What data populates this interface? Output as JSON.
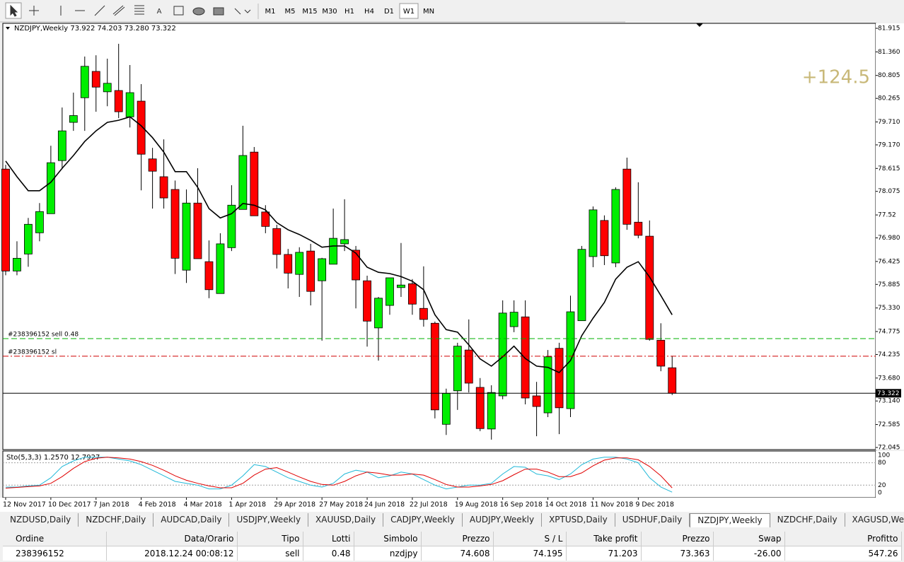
{
  "toolbar": {
    "timeframes": [
      {
        "label": "M1",
        "selected": false
      },
      {
        "label": "M5",
        "selected": false
      },
      {
        "label": "M15",
        "selected": false
      },
      {
        "label": "M30",
        "selected": false
      },
      {
        "label": "H1",
        "selected": false
      },
      {
        "label": "H4",
        "selected": false
      },
      {
        "label": "D1",
        "selected": false
      },
      {
        "label": "W1",
        "selected": true
      },
      {
        "label": "MN",
        "selected": false
      }
    ]
  },
  "chart_data": {
    "type": "candlestick",
    "info_label": "NZDJPY,Weekly  73.922 74.203 73.280 73.322",
    "overlay_text": "+124.5",
    "categories": [
      "12 Nov 2017",
      null,
      null,
      null,
      "10 Dec 2017",
      null,
      null,
      null,
      "7 Jan 2018",
      null,
      null,
      null,
      "4 Feb 2018",
      null,
      null,
      null,
      "4 Mar 2018",
      null,
      null,
      null,
      "1 Apr 2018",
      null,
      null,
      null,
      "29 Apr 2018",
      null,
      null,
      null,
      "27 May 2018",
      null,
      null,
      null,
      "24 Jun 2018",
      null,
      null,
      null,
      "22 Jul 2018",
      null,
      null,
      null,
      "19 Aug 2018",
      null,
      null,
      null,
      "16 Sep 2018",
      null,
      null,
      null,
      "14 Oct 2018",
      null,
      null,
      null,
      "11 Nov 2018",
      null,
      null,
      null,
      "9 Dec 2018",
      null,
      null,
      null
    ],
    "open": [
      78.6,
      76.2,
      76.6,
      77.1,
      77.55,
      78.8,
      79.7,
      80.28,
      80.9,
      80.42,
      80.45,
      79.83,
      80.2,
      78.84,
      78.42,
      78.12,
      76.22,
      77.8,
      76.42,
      75.67,
      76.75,
      77.65,
      79.0,
      77.59,
      77.2,
      76.59,
      76.12,
      76.67,
      75.97,
      76.36,
      76.84,
      76.69,
      75.97,
      74.86,
      75.39,
      75.81,
      75.9,
      75.32,
      74.97,
      72.59,
      73.38,
      74.34,
      73.46,
      72.48,
      73.26,
      74.89,
      75.12,
      73.26,
      72.86,
      74.38,
      72.96,
      75.03,
      76.54,
      77.39,
      76.39,
      78.6,
      77.35,
      77.02,
      74.57,
      73.922
    ],
    "high": [
      78.7,
      76.9,
      77.45,
      77.8,
      79.15,
      80.05,
      80.4,
      81.25,
      81.28,
      81.2,
      81.55,
      81.05,
      80.6,
      79.1,
      79.3,
      78.33,
      78.12,
      78.62,
      76.92,
      77.09,
      78.22,
      79.62,
      79.12,
      77.75,
      77.29,
      76.72,
      76.76,
      76.84,
      76.51,
      77.67,
      77.89,
      76.79,
      76.09,
      75.59,
      76.04,
      76.86,
      76.01,
      76.31,
      75.01,
      73.43,
      74.51,
      75.06,
      73.68,
      73.51,
      75.51,
      75.51,
      75.51,
      73.59,
      74.34,
      74.51,
      75.62,
      76.79,
      77.72,
      77.51,
      78.17,
      78.87,
      78.29,
      77.39,
      74.97,
      74.203
    ],
    "low": [
      76.1,
      76.1,
      76.3,
      76.9,
      77.55,
      78.6,
      79.5,
      79.5,
      79.95,
      80.08,
      79.8,
      79.58,
      78.1,
      77.67,
      77.67,
      76.13,
      75.92,
      76.49,
      75.56,
      75.67,
      76.67,
      77.65,
      77.5,
      77.09,
      76.26,
      75.79,
      75.59,
      75.39,
      74.56,
      76.36,
      76.67,
      75.32,
      74.42,
      74.09,
      75.17,
      75.59,
      75.17,
      74.89,
      72.73,
      72.34,
      72.93,
      73.34,
      72.43,
      72.23,
      73.18,
      74.76,
      73.06,
      72.31,
      72.76,
      72.36,
      72.76,
      75.03,
      76.29,
      76.34,
      76.29,
      77.17,
      76.97,
      74.56,
      73.84,
      73.28
    ],
    "close": [
      76.2,
      76.5,
      77.3,
      77.6,
      78.75,
      79.5,
      79.86,
      81.02,
      80.53,
      80.62,
      79.95,
      80.4,
      78.95,
      78.55,
      77.92,
      76.5,
      77.8,
      76.49,
      75.76,
      76.84,
      77.75,
      78.92,
      77.5,
      77.25,
      76.59,
      76.15,
      76.64,
      75.72,
      76.49,
      76.97,
      76.94,
      75.99,
      75.02,
      75.56,
      76.04,
      75.87,
      75.42,
      75.06,
      72.93,
      73.32,
      74.43,
      73.56,
      72.49,
      73.34,
      75.21,
      75.23,
      73.21,
      73.01,
      74.18,
      72.98,
      75.24,
      76.71,
      77.64,
      76.56,
      78.12,
      77.3,
      77.04,
      74.59,
      73.96,
      73.322
    ],
    "up_color": "#00ee00",
    "down_color": "#ff0000",
    "ma": {
      "color": "#000000",
      "values": [
        78.79,
        78.42,
        78.09,
        78.09,
        78.29,
        78.62,
        78.92,
        79.25,
        79.5,
        79.7,
        79.75,
        79.83,
        79.62,
        79.34,
        79.0,
        78.54,
        78.54,
        78.17,
        77.67,
        77.45,
        77.55,
        77.79,
        77.75,
        77.64,
        77.34,
        77.17,
        77.06,
        76.92,
        76.76,
        76.79,
        76.79,
        76.62,
        76.29,
        76.17,
        76.14,
        76.07,
        75.96,
        75.76,
        75.17,
        74.82,
        74.76,
        74.46,
        74.13,
        73.96,
        74.18,
        74.43,
        74.14,
        73.96,
        73.93,
        73.81,
        74.09,
        74.68,
        75.09,
        75.46,
        76.01,
        76.29,
        76.42,
        76.06,
        75.62,
        75.17
      ]
    },
    "ylim": [
      71.995,
      82.032
    ],
    "yticks": [
      81.915,
      {
        "value": 81.36,
        "label": "81.360"
      },
      80.805,
      80.265,
      {
        "value": 79.71,
        "label": "79.710"
      },
      {
        "value": 79.17,
        "label": "79.170"
      },
      78.615,
      78.075,
      77.52,
      {
        "value": 76.98,
        "label": "76.980"
      },
      76.425,
      75.885,
      {
        "value": 75.33,
        "label": "75.330"
      },
      74.775,
      74.235,
      {
        "value": 73.68,
        "label": "73.680"
      },
      {
        "value": 73.14,
        "label": "73.140"
      },
      72.585,
      72.045
    ],
    "order_lines": [
      {
        "label": "#238396152 sell 0.48",
        "color": "#00b000"
      },
      {
        "label": "#238396152 sl",
        "color": "#d00000"
      }
    ],
    "stochastic": {
      "label": "Sto(5,3,3) 1.2570 12.7927",
      "ylim": [
        -13.5,
        111.5
      ],
      "yticks": [
        0,
        20,
        80,
        100
      ],
      "levels_color": "#a0a0a0",
      "series": [
        {
          "color": "#20b8d8",
          "values": [
            15,
            15,
            18,
            20,
            40,
            70,
            85,
            95,
            95,
            95,
            90,
            85,
            75,
            60,
            45,
            30,
            25,
            20,
            10,
            10,
            20,
            45,
            75,
            70,
            55,
            40,
            30,
            20,
            15,
            25,
            50,
            60,
            55,
            40,
            45,
            55,
            50,
            35,
            20,
            10,
            15,
            20,
            20,
            25,
            50,
            70,
            68,
            50,
            45,
            35,
            50,
            75,
            90,
            95,
            95,
            90,
            80,
            40,
            15,
            1.257
          ]
        },
        {
          "color": "#e00000",
          "values": [
            12,
            14,
            16,
            18,
            25,
            43,
            65,
            83,
            92,
            95,
            93,
            90,
            83,
            73,
            60,
            45,
            33,
            25,
            18,
            13,
            13,
            25,
            47,
            63,
            67,
            55,
            42,
            30,
            22,
            20,
            30,
            45,
            55,
            52,
            47,
            47,
            50,
            47,
            35,
            22,
            15,
            15,
            18,
            22,
            32,
            48,
            63,
            63,
            55,
            43,
            43,
            53,
            72,
            87,
            93,
            93,
            88,
            70,
            45,
            12.7927
          ]
        }
      ]
    }
  },
  "tabs": [
    {
      "label": "NZDUSD,Daily",
      "selected": false
    },
    {
      "label": "NZDCHF,Daily",
      "selected": false
    },
    {
      "label": "AUDCAD,Daily",
      "selected": false
    },
    {
      "label": "USDJPY,Weekly",
      "selected": false
    },
    {
      "label": "XAUUSD,Daily",
      "selected": false
    },
    {
      "label": "CADJPY,Weekly",
      "selected": false
    },
    {
      "label": "AUDJPY,Weekly",
      "selected": false
    },
    {
      "label": "XPTUSD,Daily",
      "selected": false
    },
    {
      "label": "USDHUF,Daily",
      "selected": false
    },
    {
      "label": "NZDJPY,Weekly",
      "selected": true
    },
    {
      "label": "NZDCHF,Daily",
      "selected": false
    },
    {
      "label": "XAGUSD,Weekly",
      "selected": false
    }
  ],
  "orders": {
    "headers": [
      "Ordine",
      "Data/Orario",
      "Tipo",
      "Lotti",
      "Simbolo",
      "Prezzo",
      "S / L",
      "Take profit",
      "Prezzo",
      "Swap",
      "Profitto"
    ],
    "rows": [
      [
        "238396152",
        "2018.12.24 00:08:12",
        "sell",
        0.48,
        "nzdjpy",
        74.608,
        74.195,
        71.203,
        73.363,
        "-26.00",
        547.26
      ]
    ]
  }
}
